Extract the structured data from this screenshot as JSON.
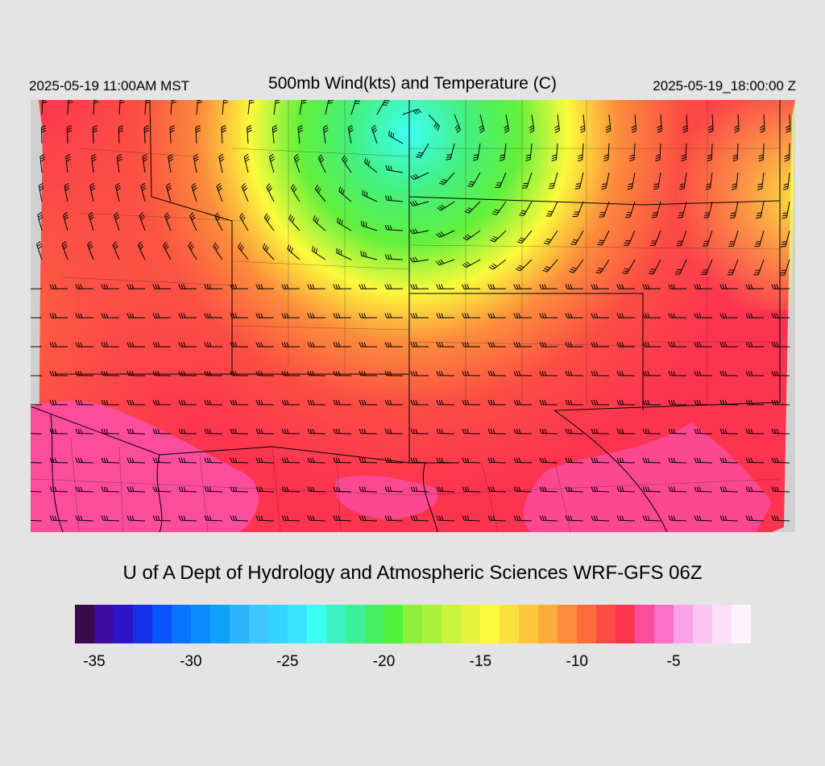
{
  "header": {
    "local_time": "2025-05-19 11:00AM MST",
    "title": "500mb Wind(kts) and Temperature (C)",
    "valid_time": "2025-05-19_18:00:00 Z"
  },
  "credit": "U of A Dept of Hydrology and Atmospheric Sciences WRF-GFS 06Z",
  "colorbar": {
    "unit": "C",
    "colors": [
      "#3a0a4a",
      "#3f0aa0",
      "#2a16c8",
      "#1630e8",
      "#0a54ff",
      "#0a74ff",
      "#0a8cff",
      "#12a0ff",
      "#2cb4ff",
      "#3cc6ff",
      "#33d4ff",
      "#3ce4ff",
      "#3cfff4",
      "#3cf2c4",
      "#3cf098",
      "#44f060",
      "#50f03c",
      "#8ef03c",
      "#a8f43c",
      "#c8f43c",
      "#e4f43c",
      "#fcfa3c",
      "#fce03c",
      "#fcc83c",
      "#fcac3c",
      "#fc8c3c",
      "#fc6c3c",
      "#fc4c44",
      "#fc3450",
      "#fc4c9c",
      "#fc70c8",
      "#fca0e8",
      "#fcc4f0",
      "#fce0f8",
      "#fef2fc"
    ],
    "ticks": [
      {
        "label": "-35",
        "value": -35
      },
      {
        "label": "-30",
        "value": -30
      },
      {
        "label": "-25",
        "value": -25
      },
      {
        "label": "-20",
        "value": -20
      },
      {
        "label": "-15",
        "value": -15
      },
      {
        "label": "-10",
        "value": -10
      },
      {
        "label": "-5",
        "value": -5
      }
    ]
  },
  "map": {
    "background_color": "#d0d0d0",
    "field_colors": {
      "cold_core": "#3cfff4",
      "green": "#50f03c",
      "yellow": "#fcfa3c",
      "orange": "#fc8c3c",
      "red": "#fc3450",
      "pink": "#fc4c9c"
    }
  }
}
